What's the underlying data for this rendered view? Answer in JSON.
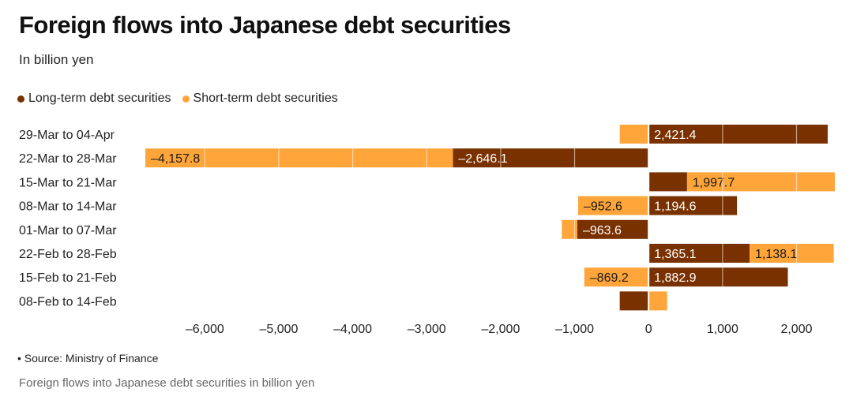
{
  "title": "Foreign flows into Japanese debt securities",
  "subtitle": "In billion yen",
  "source": "• Source: Ministry of Finance",
  "caption": "Foreign flows into Japanese debt securities in billion yen",
  "colors": {
    "long": "#7a3100",
    "short": "#ffa53a"
  },
  "chart_data": {
    "type": "bar",
    "orientation": "horizontal",
    "stacked": true,
    "categories": [
      "29-Mar to 04-Apr",
      "22-Mar to 28-Mar",
      "15-Mar to 21-Mar",
      "08-Mar to 14-Mar",
      "01-Mar to 07-Mar",
      "22-Feb to 28-Feb",
      "15-Feb to 21-Feb",
      "08-Feb to 14-Feb"
    ],
    "series": [
      {
        "name": "Long-term debt securities",
        "color": "#7a3100",
        "values": [
          2421.4,
          -2646.1,
          520,
          1194.6,
          -963.6,
          1365.1,
          1882.9,
          -390
        ],
        "labels": [
          "2,421.4",
          "–2,646.1",
          "",
          "1,194.6",
          "–963.6",
          "1,365.1",
          "1,882.9",
          ""
        ]
      },
      {
        "name": "Short-term debt securities",
        "color": "#ffa53a",
        "values": [
          -390,
          -4157.8,
          1997.7,
          -952.6,
          -210,
          1138.1,
          -869.2,
          250
        ],
        "labels": [
          "",
          "–4,157.8",
          "1,997.7",
          "–952.6",
          "",
          "1,138.1",
          "–869.2",
          ""
        ]
      }
    ],
    "xticks": [
      -6000,
      -5000,
      -4000,
      -3000,
      -2000,
      -1000,
      0,
      1000,
      2000
    ],
    "xtick_labels": [
      "–6,000",
      "–5,000",
      "–4,000",
      "–3,000",
      "–2,000",
      "–1,000",
      "0",
      "1,000",
      "2,000"
    ],
    "xlim": [
      -6900,
      2550
    ],
    "legend_position": "top-left"
  }
}
